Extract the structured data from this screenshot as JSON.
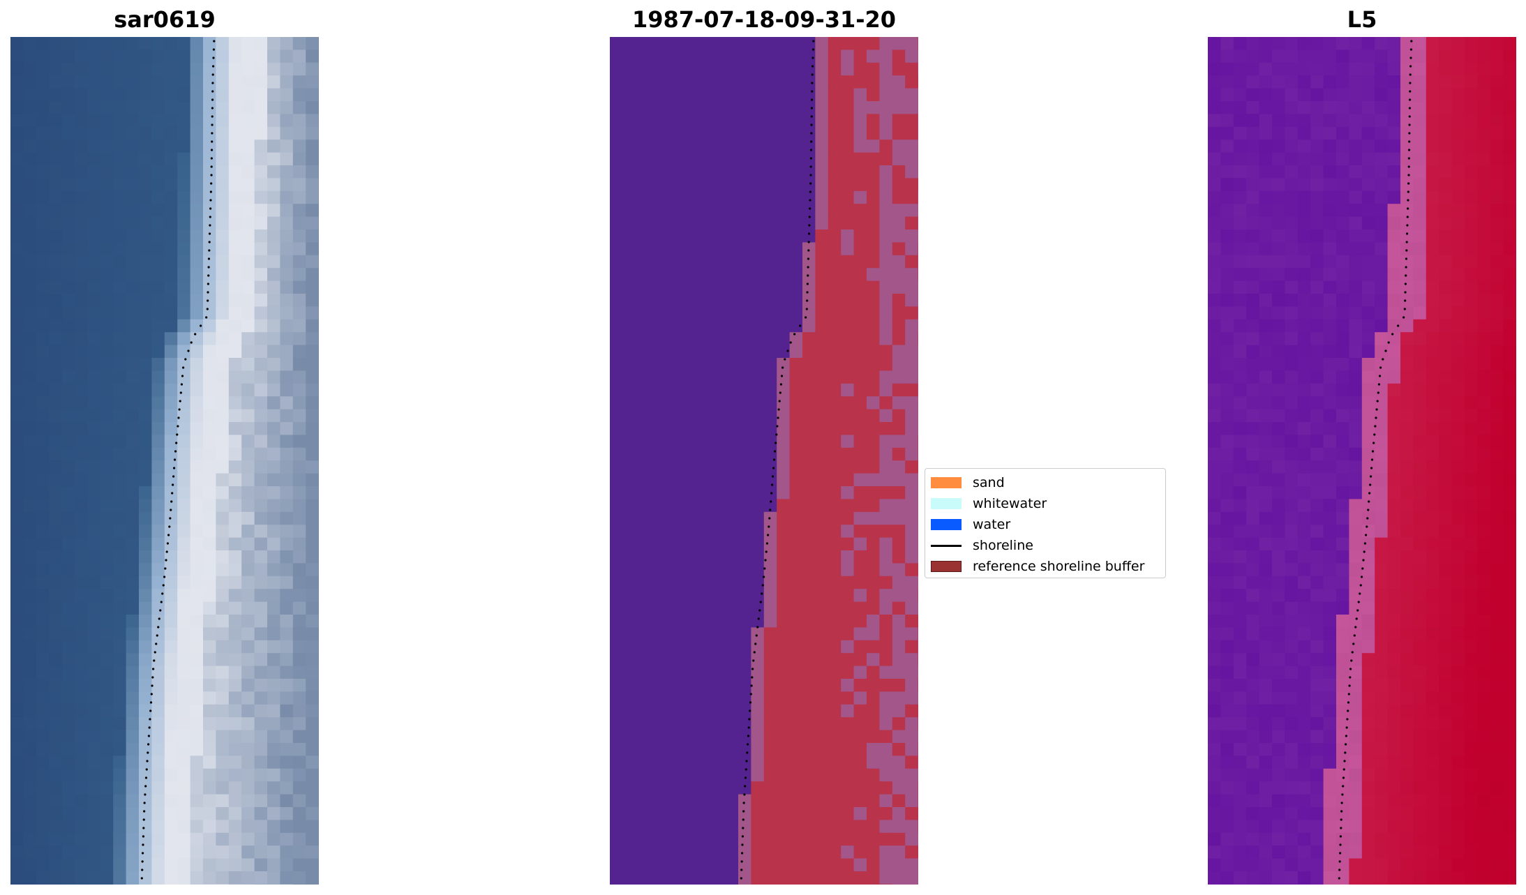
{
  "panels": [
    {
      "title": "sar0619",
      "kind": "rgb"
    },
    {
      "title": "1987-07-18-09-31-20",
      "kind": "classified"
    },
    {
      "title": "L5",
      "kind": "index"
    }
  ],
  "legend": {
    "items": [
      {
        "label": "sand",
        "type": "patch",
        "color": "#ff8c3f"
      },
      {
        "label": "whitewater",
        "type": "patch",
        "color": "#c8fbf9"
      },
      {
        "label": "water",
        "type": "patch",
        "color": "#0a5bff"
      },
      {
        "label": "shoreline",
        "type": "line",
        "color": "#000000"
      },
      {
        "label": "reference shoreline buffer",
        "type": "patch",
        "color": "#9b3232"
      }
    ]
  },
  "colors": {
    "water_rgb": "#2a4b7c",
    "beach_rgb": "#dfe3ec",
    "class_water": "#54238f",
    "class_land": "#b9344a",
    "class_buffer": "#a2568a",
    "index_low": "#6515a0",
    "index_high": "#c1002f",
    "shoreline": "#000000"
  }
}
